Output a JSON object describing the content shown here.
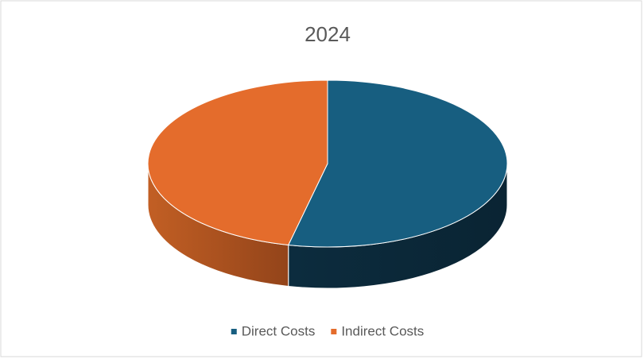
{
  "chart_data": {
    "type": "pie",
    "title": "2024",
    "categories": [
      "Direct Costs",
      "Indirect Costs"
    ],
    "values": [
      53.5,
      46.5
    ],
    "colors": [
      "#175e80",
      "#e46c2c"
    ],
    "legend": "bottom"
  }
}
